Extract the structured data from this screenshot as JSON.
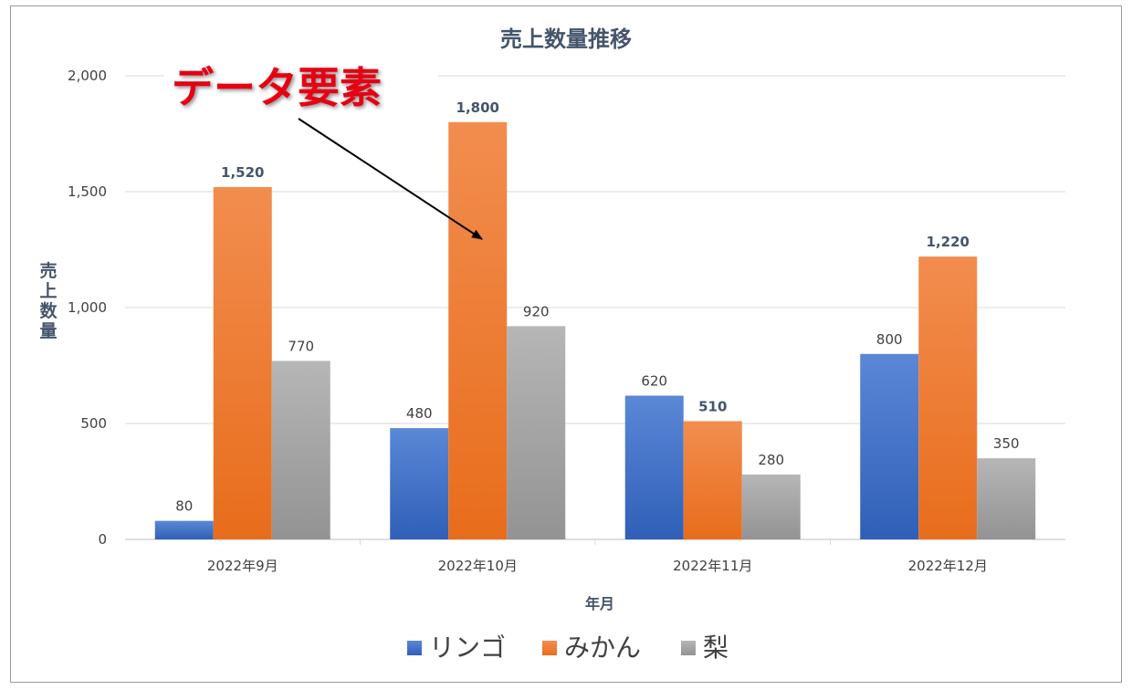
{
  "chart_data": {
    "type": "bar",
    "title": "売上数量推移",
    "xlabel": "年月",
    "ylabel": "売上数量",
    "categories": [
      "2022年9月",
      "2022年10月",
      "2022年11月",
      "2022年12月"
    ],
    "series": [
      {
        "name": "リンゴ",
        "values": [
          80,
          480,
          620,
          800
        ],
        "color": "#4472c4"
      },
      {
        "name": "みかん",
        "values": [
          1520,
          1800,
          510,
          1220
        ],
        "color": "#ed7d31"
      },
      {
        "name": "梨",
        "values": [
          770,
          920,
          280,
          350
        ],
        "color": "#a5a5a5"
      }
    ],
    "ylim": [
      0,
      2000
    ],
    "yticks": [
      0,
      500,
      1000,
      1500,
      2000
    ],
    "ytick_labels": [
      "0",
      "500",
      "1,000",
      "1,500",
      "2,000"
    ],
    "data_labels": [
      [
        "80",
        "480",
        "620",
        "800"
      ],
      [
        "1,520",
        "1,800",
        "510",
        "1,220"
      ],
      [
        "770",
        "920",
        "280",
        "350"
      ]
    ],
    "bold_label_series": 1,
    "grid": true,
    "legend_position": "bottom",
    "annotation": {
      "text": "データ要素",
      "color": "#e60012"
    }
  }
}
